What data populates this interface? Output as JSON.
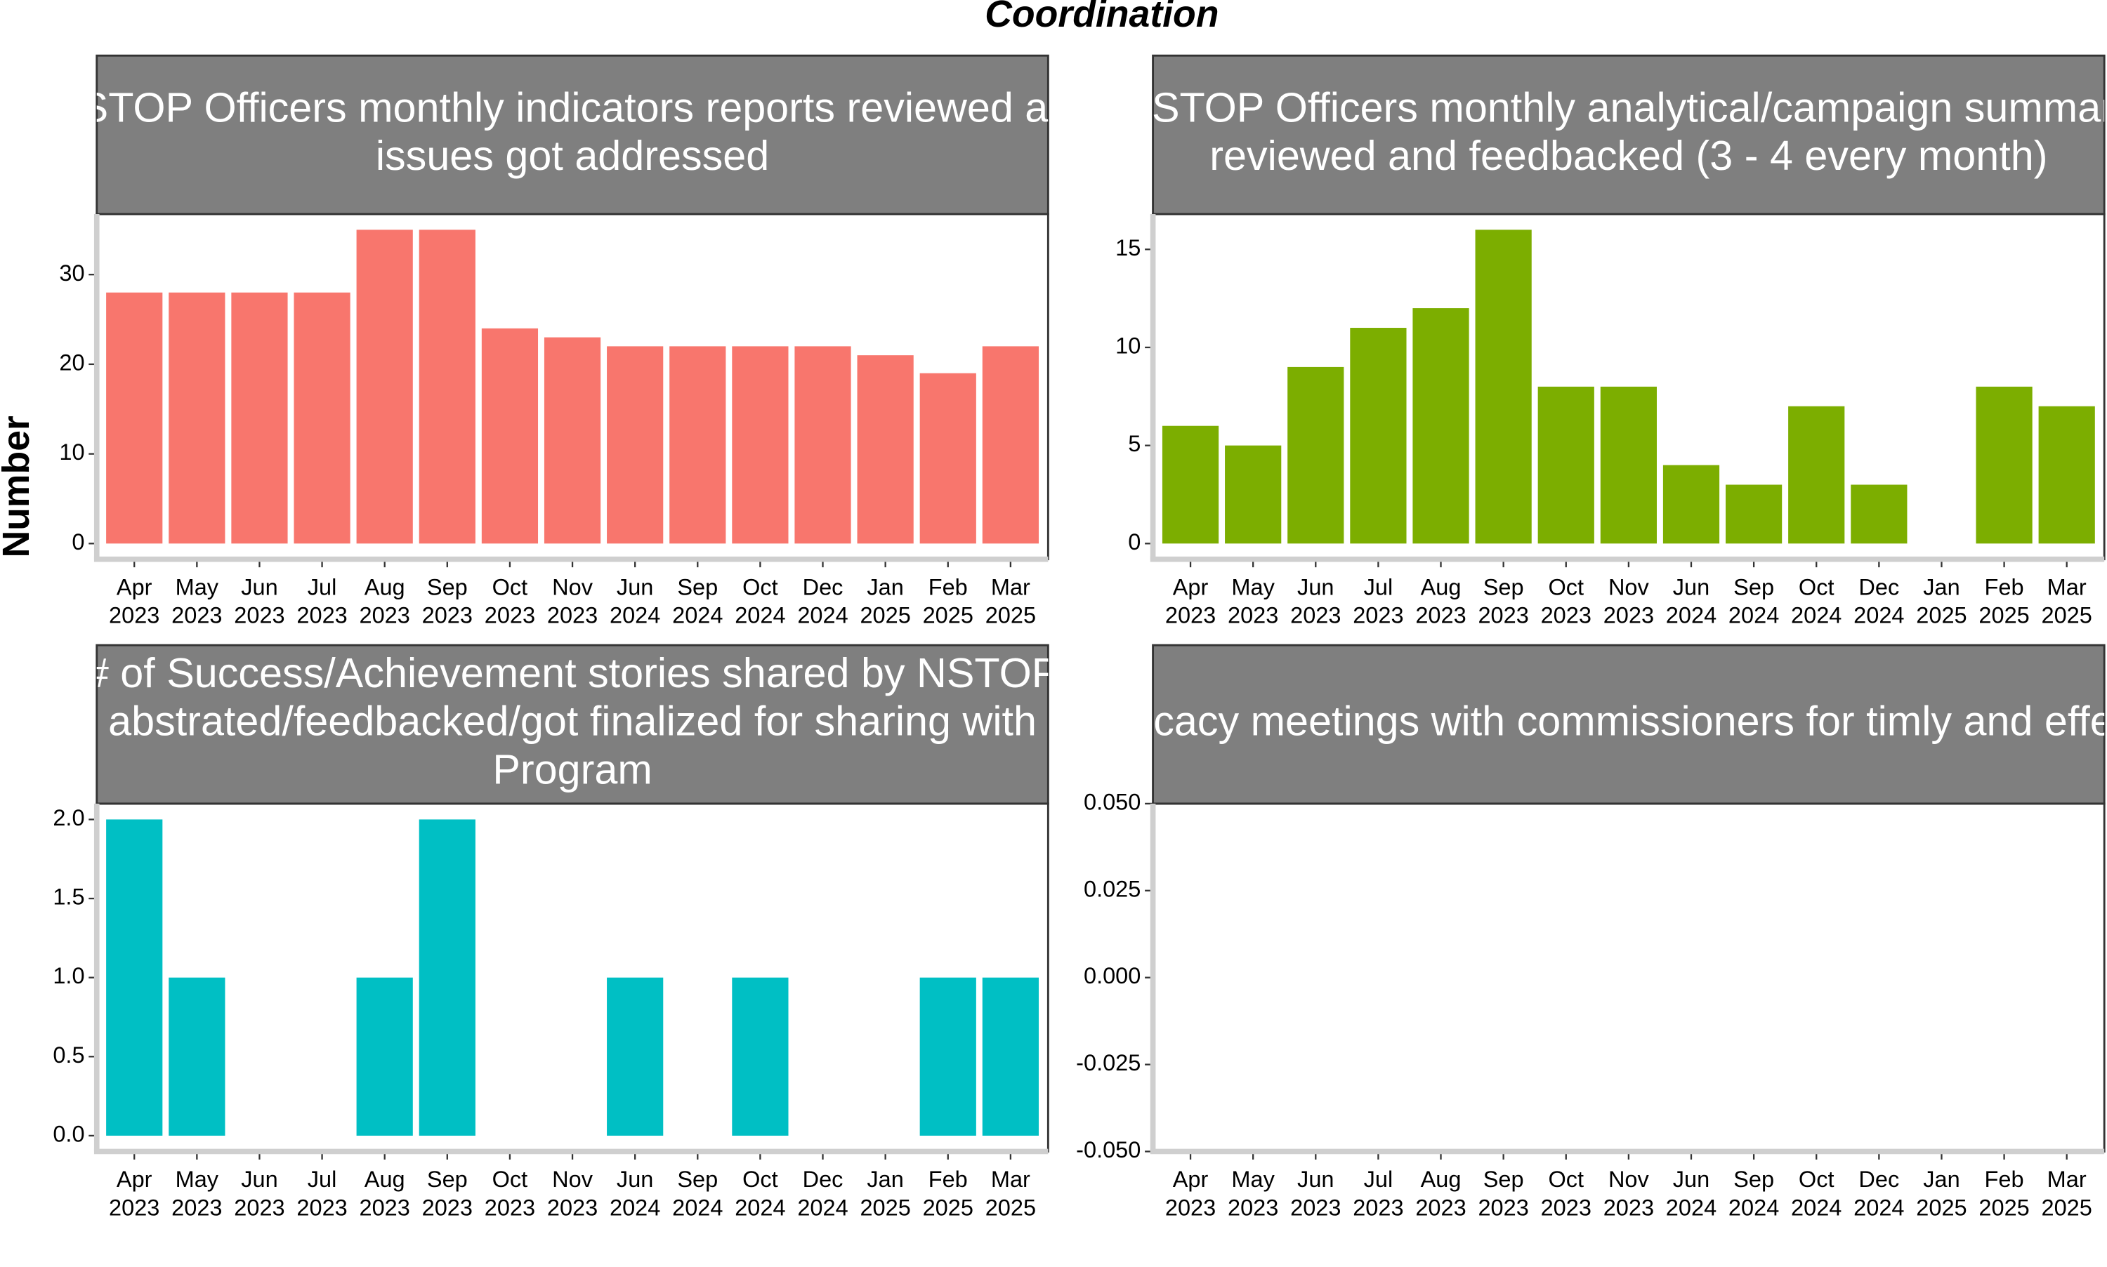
{
  "title": "Coordination",
  "y_label": "Number",
  "chart_data": [
    {
      "type": "bar",
      "title_lines": [
        "NSTOP Officers monthly indicators reports reviewed and",
        "issues got addressed"
      ],
      "color": "#F8766D",
      "categories": [
        {
          "month": "Apr",
          "year": "2023"
        },
        {
          "month": "May",
          "year": "2023"
        },
        {
          "month": "Jun",
          "year": "2023"
        },
        {
          "month": "Jul",
          "year": "2023"
        },
        {
          "month": "Aug",
          "year": "2023"
        },
        {
          "month": "Sep",
          "year": "2023"
        },
        {
          "month": "Oct",
          "year": "2023"
        },
        {
          "month": "Nov",
          "year": "2023"
        },
        {
          "month": "Jun",
          "year": "2024"
        },
        {
          "month": "Sep",
          "year": "2024"
        },
        {
          "month": "Oct",
          "year": "2024"
        },
        {
          "month": "Dec",
          "year": "2024"
        },
        {
          "month": "Jan",
          "year": "2025"
        },
        {
          "month": "Feb",
          "year": "2025"
        },
        {
          "month": "Mar",
          "year": "2025"
        }
      ],
      "values": [
        28,
        28,
        28,
        28,
        35,
        35,
        24,
        23,
        22,
        22,
        22,
        22,
        21,
        19,
        22
      ],
      "ylim": [
        -1.75,
        36.75
      ],
      "yticks": [
        0,
        10,
        20,
        30
      ]
    },
    {
      "type": "bar",
      "title_lines": [
        "NSTOP Officers monthly analytical/campaign summary",
        "reviewed and feedbacked (3 - 4 every month)"
      ],
      "color": "#7CAE00",
      "categories": [
        {
          "month": "Apr",
          "year": "2023"
        },
        {
          "month": "May",
          "year": "2023"
        },
        {
          "month": "Jun",
          "year": "2023"
        },
        {
          "month": "Jul",
          "year": "2023"
        },
        {
          "month": "Aug",
          "year": "2023"
        },
        {
          "month": "Sep",
          "year": "2023"
        },
        {
          "month": "Oct",
          "year": "2023"
        },
        {
          "month": "Nov",
          "year": "2023"
        },
        {
          "month": "Jun",
          "year": "2024"
        },
        {
          "month": "Sep",
          "year": "2024"
        },
        {
          "month": "Oct",
          "year": "2024"
        },
        {
          "month": "Dec",
          "year": "2024"
        },
        {
          "month": "Jan",
          "year": "2025"
        },
        {
          "month": "Feb",
          "year": "2025"
        },
        {
          "month": "Mar",
          "year": "2025"
        }
      ],
      "values": [
        6,
        5,
        9,
        11,
        12,
        16,
        8,
        8,
        4,
        3,
        7,
        3,
        null,
        8,
        7
      ],
      "ylim": [
        -0.8,
        16.8
      ],
      "yticks": [
        0,
        5,
        10,
        15
      ]
    },
    {
      "type": "bar",
      "title_lines": [
        "# of Success/Achievement stories shared by NSTOP",
        "abstrated/feedbacked/got finalized for sharing with",
        "Program"
      ],
      "color": "#00BFC4",
      "categories": [
        {
          "month": "Apr",
          "year": "2023"
        },
        {
          "month": "May",
          "year": "2023"
        },
        {
          "month": "Jun",
          "year": "2023"
        },
        {
          "month": "Jul",
          "year": "2023"
        },
        {
          "month": "Aug",
          "year": "2023"
        },
        {
          "month": "Sep",
          "year": "2023"
        },
        {
          "month": "Oct",
          "year": "2023"
        },
        {
          "month": "Nov",
          "year": "2023"
        },
        {
          "month": "Jun",
          "year": "2024"
        },
        {
          "month": "Sep",
          "year": "2024"
        },
        {
          "month": "Oct",
          "year": "2024"
        },
        {
          "month": "Dec",
          "year": "2024"
        },
        {
          "month": "Jan",
          "year": "2025"
        },
        {
          "month": "Feb",
          "year": "2025"
        },
        {
          "month": "Mar",
          "year": "2025"
        }
      ],
      "values": [
        2,
        1,
        null,
        null,
        1,
        2,
        null,
        null,
        1,
        null,
        1,
        null,
        null,
        1,
        1
      ],
      "ylim": [
        -0.1,
        2.1
      ],
      "yticks": [
        {
          "value": 0,
          "label": "0.0"
        },
        {
          "value": 0.5,
          "label": "0.5"
        },
        {
          "value": 1,
          "label": "1.0"
        },
        {
          "value": 1.5,
          "label": "1.5"
        },
        {
          "value": 2,
          "label": "2.0"
        }
      ]
    },
    {
      "type": "bar",
      "title_lines": [
        "Advocacy meetings with commissioners for timly and effective"
      ],
      "color": "#C77CFF",
      "categories": [
        {
          "month": "Apr",
          "year": "2023"
        },
        {
          "month": "May",
          "year": "2023"
        },
        {
          "month": "Jun",
          "year": "2023"
        },
        {
          "month": "Jul",
          "year": "2023"
        },
        {
          "month": "Aug",
          "year": "2023"
        },
        {
          "month": "Sep",
          "year": "2023"
        },
        {
          "month": "Oct",
          "year": "2023"
        },
        {
          "month": "Nov",
          "year": "2023"
        },
        {
          "month": "Jun",
          "year": "2024"
        },
        {
          "month": "Sep",
          "year": "2024"
        },
        {
          "month": "Oct",
          "year": "2024"
        },
        {
          "month": "Dec",
          "year": "2024"
        },
        {
          "month": "Jan",
          "year": "2025"
        },
        {
          "month": "Feb",
          "year": "2025"
        },
        {
          "month": "Mar",
          "year": "2025"
        }
      ],
      "values": [
        null,
        null,
        null,
        null,
        null,
        null,
        null,
        null,
        null,
        null,
        null,
        null,
        null,
        null,
        null
      ],
      "ylim": [
        -0.05,
        0.05
      ],
      "yticks": [
        {
          "value": -0.05,
          "label": "-0.050"
        },
        {
          "value": -0.025,
          "label": "-0.025"
        },
        {
          "value": 0,
          "label": "0.000"
        },
        {
          "value": 0.025,
          "label": "0.025"
        },
        {
          "value": 0.05,
          "label": "0.050"
        }
      ]
    }
  ]
}
